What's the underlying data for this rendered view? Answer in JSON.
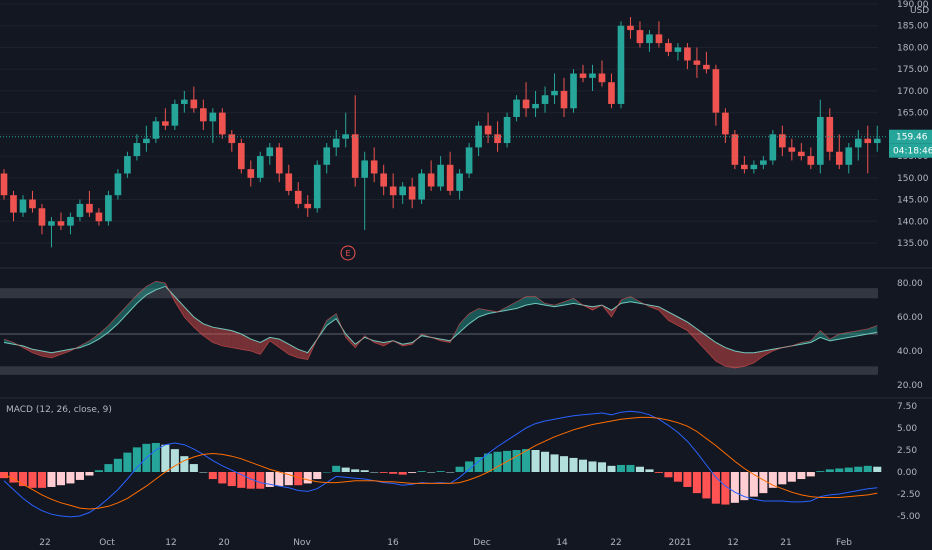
{
  "colors": {
    "background": "#131722",
    "up": "#26a69a",
    "down": "#ef5350",
    "grid": "#1e222d",
    "text": "#b2b5be",
    "rsi_line": "#7ad7c9",
    "macd_line": "#2962ff",
    "signal_line": "#ff6d00",
    "hist_up_strong": "#26a69a",
    "hist_up_weak": "#b2dfdb",
    "hist_down_strong": "#ff5252",
    "hist_down_weak": "#ffcdd2",
    "band": "#363a45"
  },
  "price_axis": {
    "unit": "USD",
    "ticks": [
      "135.00",
      "140.00",
      "145.00",
      "150.00",
      "155.00",
      "160.00",
      "165.00",
      "170.00",
      "175.00",
      "180.00",
      "185.00",
      "190.00"
    ],
    "last_price_label": "159.46",
    "countdown_label": "04:18:46"
  },
  "osc_axis": {
    "ticks": [
      "20.00",
      "40.00",
      "60.00",
      "80.00"
    ]
  },
  "macd_axis": {
    "title": "MACD (12, 26, close, 9)",
    "ticks": [
      "-5.00",
      "-2.50",
      "0.00",
      "2.50",
      "5.00",
      "7.50"
    ]
  },
  "time_axis": {
    "labels": [
      "22",
      "Oct",
      "12",
      "20",
      "Nov",
      "16",
      "Dec",
      "14",
      "22",
      "2021",
      "12",
      "21",
      "Feb"
    ]
  },
  "earnings_marker": "E",
  "chart_data": [
    {
      "type": "candlestick",
      "series": [
        {
          "name": "",
          "ohlc": [
            [
              151,
              152,
              145,
              146
            ],
            [
              146,
              147,
              140,
              142
            ],
            [
              142,
              146,
              141,
              145
            ],
            [
              145,
              147,
              142,
              143
            ],
            [
              143,
              144,
              137,
              139
            ],
            [
              139,
              141,
              134,
              140
            ],
            [
              140,
              142,
              138,
              139
            ],
            [
              139,
              142,
              137,
              141
            ],
            [
              141,
              145,
              140,
              144
            ],
            [
              144,
              147,
              141,
              142
            ],
            [
              142,
              143,
              139,
              140
            ],
            [
              140,
              147,
              139,
              146
            ],
            [
              146,
              152,
              145,
              151
            ],
            [
              151,
              156,
              150,
              155
            ],
            [
              155,
              160,
              154,
              158
            ],
            [
              158,
              162,
              156,
              159
            ],
            [
              159,
              164,
              158,
              163
            ],
            [
              163,
              166,
              161,
              162
            ],
            [
              162,
              168,
              161,
              167
            ],
            [
              167,
              170,
              165,
              168
            ],
            [
              168,
              171,
              165,
              166
            ],
            [
              166,
              168,
              161,
              163
            ],
            [
              163,
              166,
              158,
              165
            ],
            [
              165,
              166,
              159,
              160
            ],
            [
              160,
              161,
              156,
              158
            ],
            [
              158,
              159,
              151,
              152
            ],
            [
              152,
              154,
              148,
              150
            ],
            [
              150,
              156,
              149,
              155
            ],
            [
              155,
              158,
              153,
              157
            ],
            [
              157,
              158,
              149,
              151
            ],
            [
              151,
              153,
              146,
              147
            ],
            [
              147,
              149,
              143,
              144
            ],
            [
              144,
              146,
              141,
              143
            ],
            [
              143,
              154,
              142,
              153
            ],
            [
              153,
              158,
              151,
              157
            ],
            [
              157,
              161,
              155,
              159
            ],
            [
              159,
              165,
              157,
              160
            ],
            [
              160,
              169,
              148,
              150
            ],
            [
              150,
              156,
              138,
              154
            ],
            [
              154,
              157,
              149,
              151
            ],
            [
              151,
              153,
              146,
              148
            ],
            [
              148,
              151,
              143,
              146
            ],
            [
              146,
              149,
              144,
              148
            ],
            [
              148,
              150,
              143,
              145
            ],
            [
              145,
              152,
              144,
              151
            ],
            [
              151,
              154,
              147,
              148
            ],
            [
              148,
              155,
              147,
              153
            ],
            [
              153,
              156,
              146,
              147
            ],
            [
              147,
              152,
              145,
              151
            ],
            [
              151,
              158,
              150,
              157
            ],
            [
              157,
              163,
              155,
              162
            ],
            [
              162,
              165,
              158,
              160
            ],
            [
              160,
              163,
              156,
              158
            ],
            [
              158,
              165,
              157,
              164
            ],
            [
              164,
              169,
              163,
              168
            ],
            [
              168,
              172,
              164,
              166
            ],
            [
              166,
              170,
              164,
              167
            ],
            [
              167,
              171,
              165,
              169
            ],
            [
              169,
              174,
              167,
              170
            ],
            [
              170,
              173,
              164,
              166
            ],
            [
              166,
              175,
              165,
              174
            ],
            [
              174,
              176,
              172,
              173
            ],
            [
              173,
              176,
              170,
              174
            ],
            [
              174,
              177,
              171,
              172
            ],
            [
              172,
              174,
              166,
              167
            ],
            [
              167,
              186,
              166,
              185
            ],
            [
              185,
              187,
              182,
              184
            ],
            [
              184,
              186,
              180,
              181
            ],
            [
              181,
              184,
              179,
              183
            ],
            [
              183,
              186,
              180,
              181
            ],
            [
              181,
              182,
              178,
              179
            ],
            [
              179,
              181,
              177,
              180
            ],
            [
              180,
              181,
              175,
              177
            ],
            [
              177,
              180,
              173,
              176
            ],
            [
              176,
              179,
              174,
              175
            ],
            [
              175,
              176,
              162,
              165
            ],
            [
              165,
              166,
              158,
              160
            ],
            [
              160,
              161,
              152,
              153
            ],
            [
              153,
              155,
              151,
              152
            ],
            [
              152,
              154,
              151,
              153
            ],
            [
              153,
              155,
              152,
              154
            ],
            [
              154,
              161,
              153,
              160
            ],
            [
              160,
              162,
              155,
              157
            ],
            [
              157,
              159,
              154,
              156
            ],
            [
              156,
              158,
              154,
              155
            ],
            [
              155,
              157,
              152,
              153
            ],
            [
              153,
              168,
              151,
              164
            ],
            [
              164,
              166,
              154,
              156
            ],
            [
              156,
              160,
              152,
              153
            ],
            [
              153,
              158,
              151,
              157
            ],
            [
              157,
              161,
              154,
              159
            ],
            [
              159,
              162,
              151,
              158
            ],
            [
              158,
              162,
              156,
              159
            ]
          ]
        }
      ]
    },
    {
      "type": "area",
      "series": [
        {
          "name": "",
          "values": [
            45,
            44,
            43,
            41,
            40,
            39,
            40,
            41,
            42,
            44,
            47,
            51,
            56,
            62,
            68,
            73,
            76,
            78,
            72,
            66,
            60,
            56,
            54,
            53,
            52,
            50,
            47,
            45,
            48,
            47,
            44,
            41,
            39,
            47,
            55,
            59,
            50,
            44,
            48,
            46,
            45,
            46,
            44,
            45,
            49,
            48,
            47,
            46,
            51,
            56,
            60,
            62,
            63,
            64,
            65,
            67,
            68,
            67,
            66,
            67,
            68,
            67,
            66,
            67,
            64,
            68,
            69,
            68,
            67,
            66,
            63,
            60,
            57,
            53,
            49,
            45,
            42,
            40,
            39,
            39,
            40,
            41,
            42,
            43,
            44,
            45,
            48,
            46,
            47,
            48,
            49,
            50,
            51
          ]
        },
        {
          "name": "",
          "values": [
            47,
            45,
            42,
            39,
            37,
            36,
            38,
            40,
            43,
            46,
            50,
            55,
            61,
            67,
            73,
            78,
            81,
            80,
            69,
            60,
            54,
            49,
            45,
            43,
            42,
            41,
            40,
            38,
            46,
            42,
            38,
            36,
            35,
            47,
            58,
            62,
            48,
            42,
            49,
            45,
            43,
            46,
            43,
            44,
            50,
            48,
            46,
            45,
            56,
            62,
            65,
            64,
            63,
            66,
            69,
            72,
            72,
            68,
            67,
            69,
            71,
            67,
            64,
            67,
            60,
            70,
            72,
            69,
            66,
            64,
            58,
            55,
            52,
            46,
            40,
            34,
            31,
            30,
            31,
            33,
            37,
            40,
            42,
            43,
            45,
            46,
            52,
            47,
            50,
            51,
            52,
            53,
            55
          ]
        }
      ]
    },
    {
      "type": "line",
      "series": [
        {
          "name": "",
          "values": [
            -1.0,
            -2.0,
            -3.0,
            -3.8,
            -4.4,
            -4.8,
            -5.0,
            -5.1,
            -5.0,
            -4.6,
            -3.9,
            -3.0,
            -2.0,
            -0.8,
            0.5,
            1.6,
            2.5,
            3.1,
            3.3,
            3.1,
            2.6,
            2.0,
            1.3,
            0.7,
            0.2,
            -0.3,
            -0.8,
            -1.2,
            -1.4,
            -1.6,
            -1.8,
            -2.1,
            -2.2,
            -1.9,
            -1.2,
            -0.5,
            -0.6,
            -0.7,
            -0.8,
            -1.0,
            -1.2,
            -1.3,
            -1.5,
            -1.4,
            -1.2,
            -1.3,
            -1.2,
            -1.3,
            -0.6,
            0.3,
            1.2,
            2.1,
            2.9,
            3.6,
            4.3,
            5.0,
            5.5,
            5.8,
            6.0,
            6.2,
            6.4,
            6.5,
            6.6,
            6.7,
            6.5,
            6.8,
            6.9,
            6.8,
            6.5,
            6.0,
            5.3,
            4.5,
            3.5,
            2.2,
            0.8,
            -0.6,
            -1.6,
            -2.3,
            -2.8,
            -3.1,
            -3.3,
            -3.3,
            -3.3,
            -3.4,
            -3.4,
            -3.3,
            -2.8,
            -2.6,
            -2.5,
            -2.3,
            -2.1,
            -1.9,
            -1.8
          ]
        },
        {
          "name": "",
          "values": [
            -0.3,
            -0.8,
            -1.4,
            -2.0,
            -2.6,
            -3.1,
            -3.5,
            -3.8,
            -4.1,
            -4.2,
            -4.1,
            -3.9,
            -3.5,
            -3.0,
            -2.3,
            -1.6,
            -0.8,
            0.0,
            0.7,
            1.3,
            1.7,
            2.0,
            2.1,
            2.0,
            1.8,
            1.5,
            1.1,
            0.7,
            0.3,
            0.0,
            -0.3,
            -0.6,
            -0.9,
            -1.1,
            -1.2,
            -1.2,
            -1.1,
            -1.0,
            -1.0,
            -1.0,
            -1.1,
            -1.1,
            -1.2,
            -1.3,
            -1.3,
            -1.3,
            -1.3,
            -1.3,
            -1.2,
            -0.9,
            -0.5,
            0.0,
            0.6,
            1.2,
            1.8,
            2.4,
            3.0,
            3.5,
            4.0,
            4.4,
            4.8,
            5.1,
            5.4,
            5.6,
            5.8,
            6.0,
            6.1,
            6.2,
            6.2,
            6.1,
            5.9,
            5.6,
            5.2,
            4.6,
            3.8,
            3.0,
            2.1,
            1.2,
            0.4,
            -0.3,
            -0.9,
            -1.5,
            -1.9,
            -2.3,
            -2.6,
            -2.8,
            -2.9,
            -2.9,
            -2.9,
            -2.8,
            -2.7,
            -2.6,
            -2.4
          ]
        }
      ]
    },
    {
      "type": "bar",
      "series": [
        {
          "name": "",
          "values": [
            -0.7,
            -1.2,
            -1.6,
            -1.8,
            -1.8,
            -1.7,
            -1.5,
            -1.3,
            -0.9,
            -0.4,
            0.2,
            0.9,
            1.5,
            2.2,
            2.8,
            3.2,
            3.3,
            3.1,
            2.6,
            1.8,
            0.9,
            0.0,
            -0.8,
            -1.3,
            -1.6,
            -1.8,
            -1.9,
            -1.9,
            -1.7,
            -1.6,
            -1.5,
            -1.5,
            -1.3,
            -0.8,
            0.0,
            0.7,
            0.5,
            0.3,
            0.2,
            0.0,
            -0.1,
            -0.2,
            -0.3,
            -0.1,
            0.1,
            0.0,
            0.1,
            0.0,
            0.6,
            1.2,
            1.7,
            2.1,
            2.3,
            2.4,
            2.5,
            2.6,
            2.5,
            2.3,
            2.0,
            1.8,
            1.6,
            1.4,
            1.2,
            1.1,
            0.7,
            0.8,
            0.8,
            0.6,
            0.3,
            -0.1,
            -0.6,
            -1.1,
            -1.7,
            -2.4,
            -3.0,
            -3.6,
            -3.7,
            -3.5,
            -3.2,
            -2.8,
            -2.4,
            -1.8,
            -1.4,
            -1.1,
            -0.8,
            -0.5,
            0.1,
            0.3,
            0.4,
            0.5,
            0.6,
            0.7,
            0.6
          ]
        }
      ]
    }
  ]
}
